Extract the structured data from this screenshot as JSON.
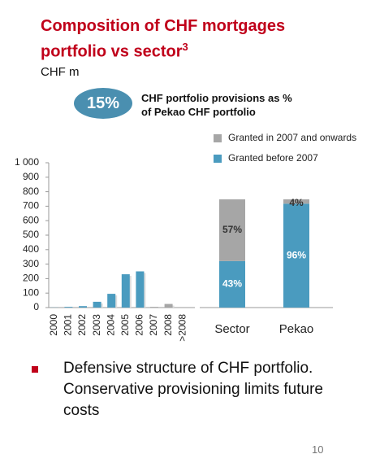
{
  "title": "Composition of CHF mortgages portfolio vs sector",
  "title_superscript": "3",
  "unit": "CHF m",
  "badge": {
    "value": "15%",
    "text": "CHF portfolio provisions as % of Pekao CHF portfolio"
  },
  "chart_data": [
    {
      "type": "bar",
      "categories": [
        "2000",
        "2001",
        "2002",
        "2003",
        "2004",
        "2005",
        "2006",
        "2007",
        "2008",
        ">2008"
      ],
      "series": [
        {
          "color": "#4a9bbf",
          "values": [
            1,
            5,
            10,
            40,
            95,
            230,
            250,
            null,
            null,
            null
          ]
        },
        {
          "color": "#a6a6a6",
          "values": [
            null,
            null,
            null,
            null,
            null,
            null,
            null,
            5,
            25,
            null
          ]
        }
      ],
      "ylim": [
        0,
        1000
      ],
      "yticks": [
        0,
        100,
        200,
        300,
        400,
        500,
        600,
        700,
        800,
        900,
        {
          "value": 1000,
          "label": "1 000"
        }
      ]
    },
    {
      "type": "stacked-bar",
      "categories": [
        "Sector",
        "Pekao"
      ],
      "series": [
        {
          "name": "Granted before 2007",
          "color": "#4a9bbf",
          "values": [
            43,
            96
          ],
          "value_labels": [
            "43%",
            "96%"
          ]
        },
        {
          "name": "Granted in 2007 and onwards",
          "color": "#a6a6a6",
          "values": [
            57,
            4
          ],
          "value_labels": [
            "57%",
            "4%"
          ]
        }
      ],
      "ylim": [
        0,
        100
      ]
    }
  ],
  "bullets": [
    "Defensive structure of CHF portfolio. Conservative provisioning limits future costs"
  ],
  "page_number": "10"
}
